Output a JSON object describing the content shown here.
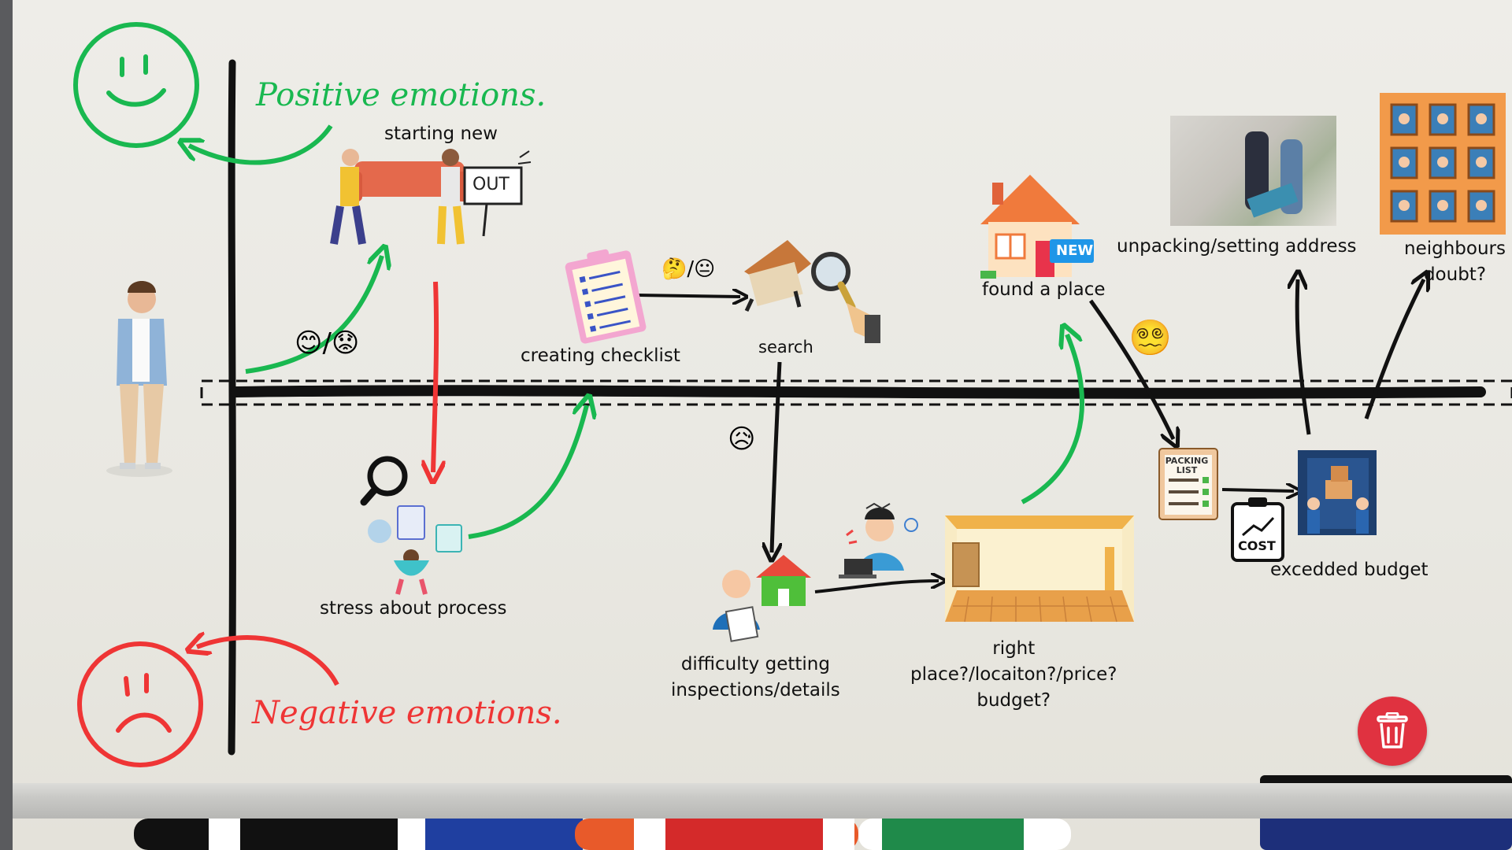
{
  "legend": {
    "positive": "Positive emotions.",
    "negative": "Negative emotions."
  },
  "steps": {
    "starting_new": "starting new",
    "stress": "stress about process",
    "checklist": "creating checklist",
    "search": "search",
    "difficulty_1": "difficulty getting",
    "difficulty_2": "inspections/details",
    "right_1": "right",
    "right_2": "place?/locaiton?/price?",
    "right_3": "budget?",
    "found": "found a place",
    "unpacking": "unpacking/setting address",
    "neighbours_1": "neighbours",
    "neighbours_2": "doubt?",
    "budget": "excedded budget"
  },
  "sign": {
    "out": "OUT"
  },
  "badges": {
    "new": "NEW",
    "packing": "PACKING LIST",
    "cost": "COST"
  },
  "emojis": {
    "happy_or_worried": "😊/😟",
    "thinking_or_neutral": "🤔/😐",
    "sad": "😥",
    "confused": "😵‍💫"
  },
  "colors": {
    "positive": "#19b850",
    "negative": "#ef3535",
    "trash": "#e03240"
  },
  "icons": {
    "trash": "trash-icon"
  }
}
